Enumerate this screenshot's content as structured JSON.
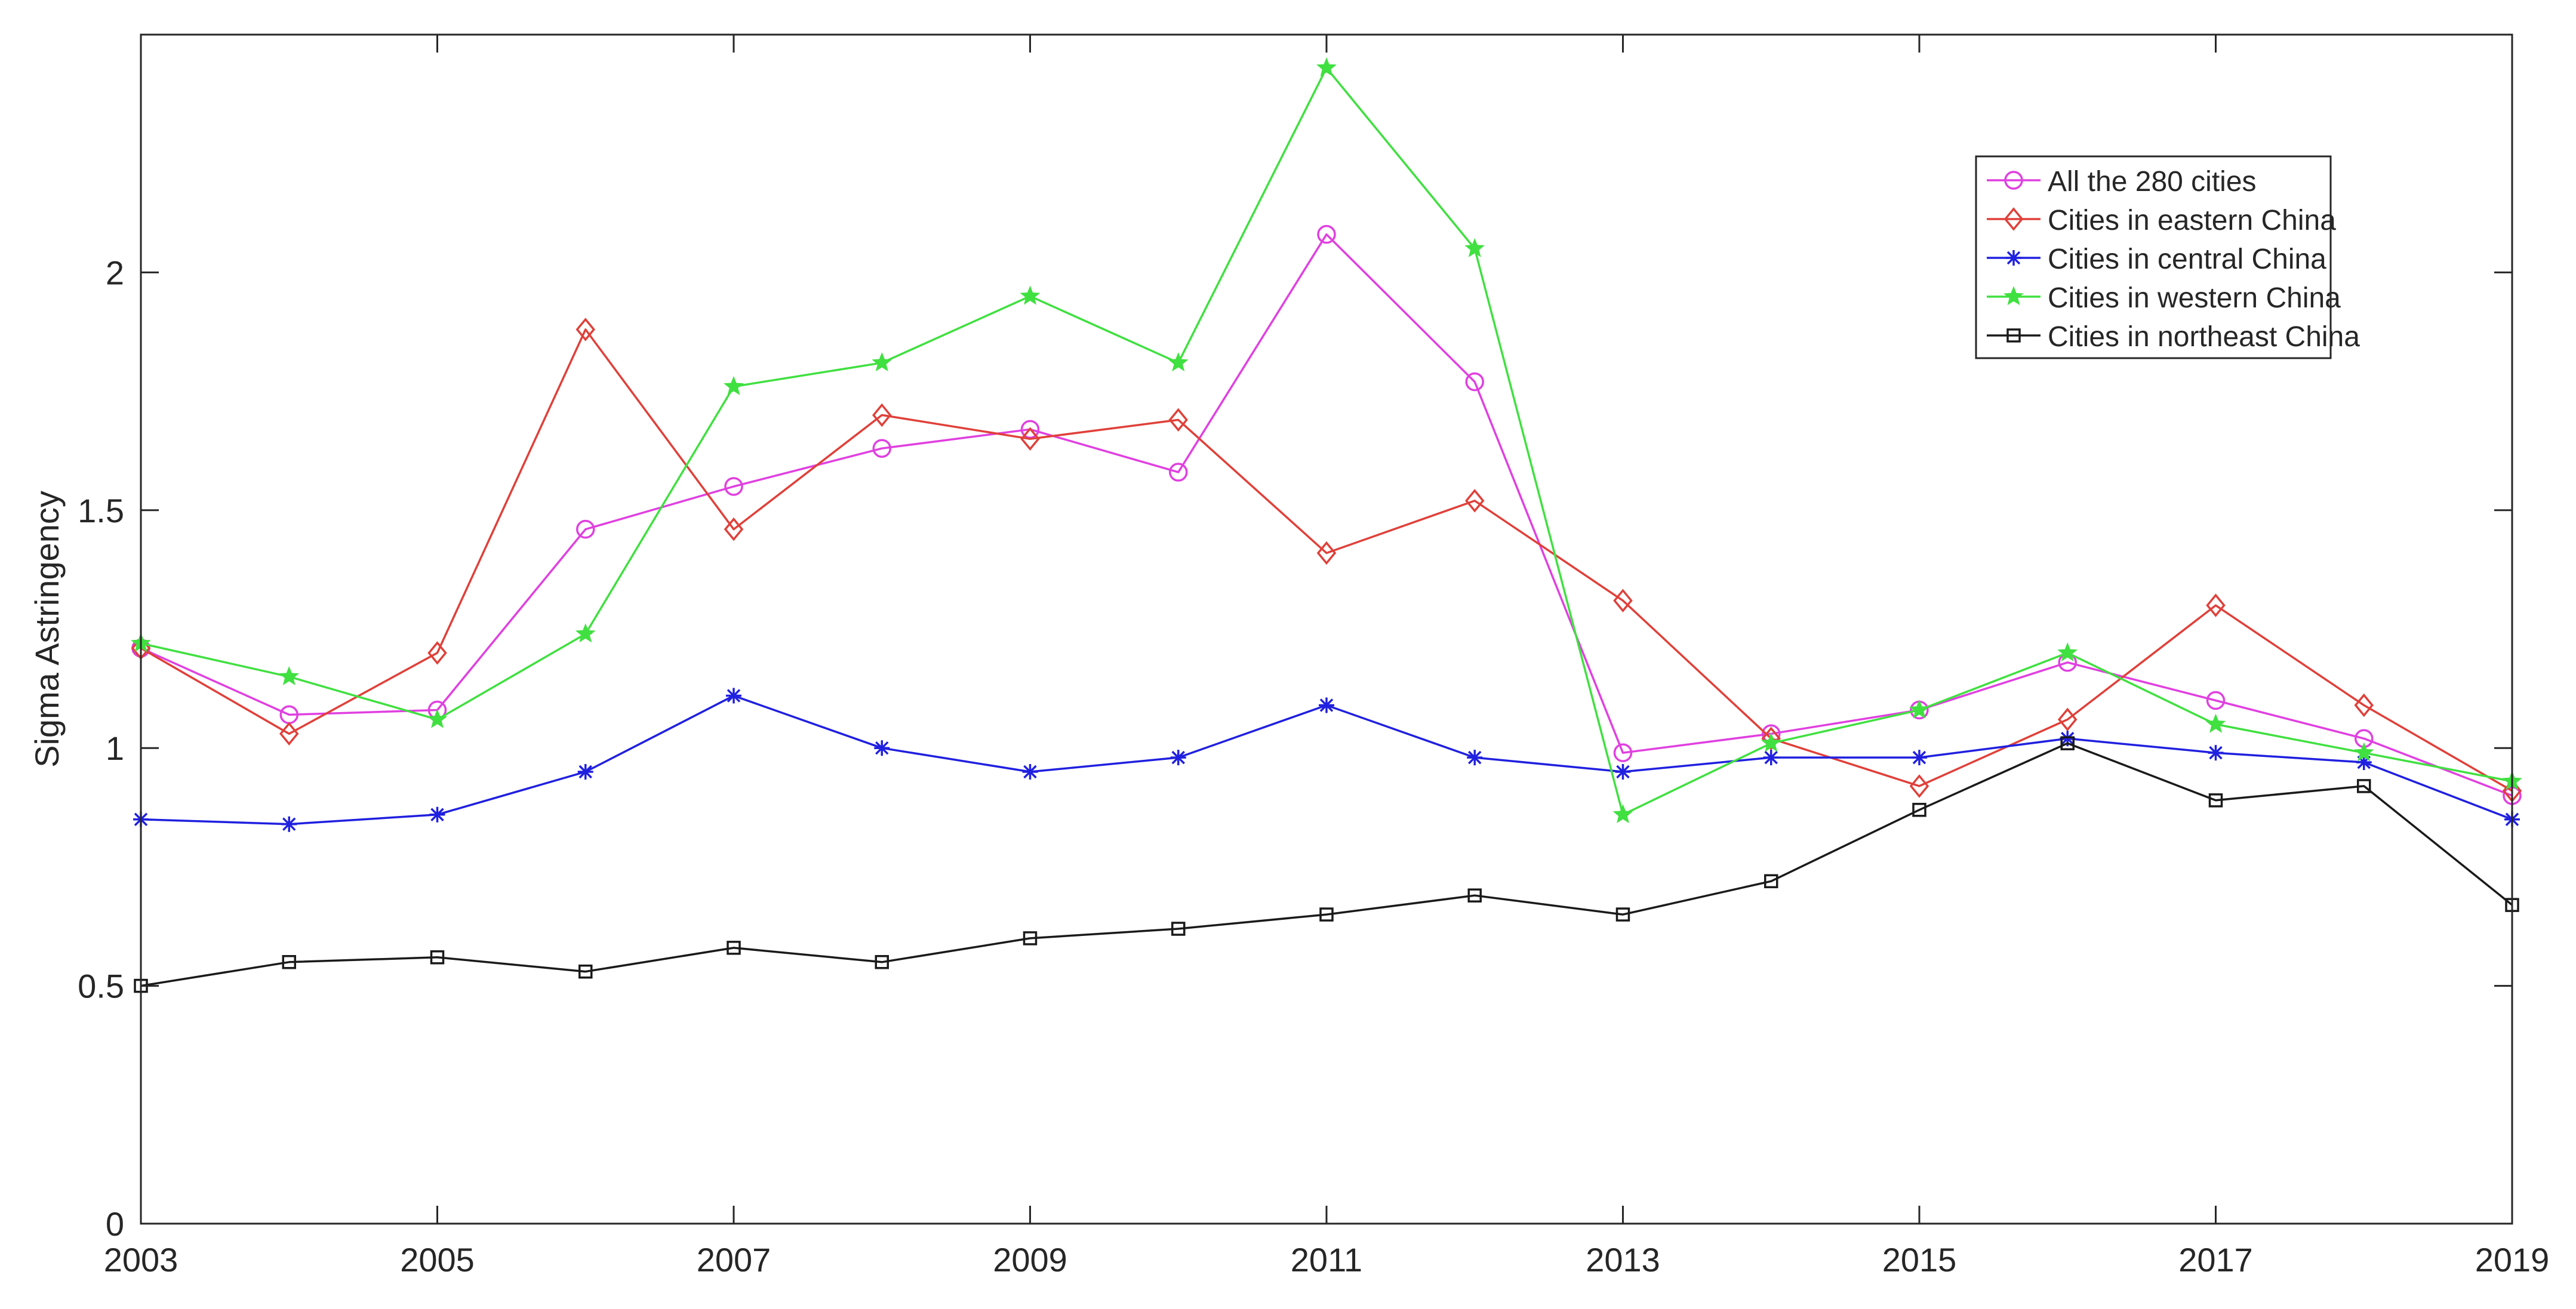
{
  "chart_data": {
    "type": "line",
    "title": "",
    "xlabel": "",
    "ylabel": "Sigma Astringency",
    "xlim": [
      2003,
      2019
    ],
    "ylim": [
      0,
      2.5
    ],
    "x_ticks": [
      2003,
      2005,
      2007,
      2009,
      2011,
      2013,
      2015,
      2017,
      2019
    ],
    "y_ticks": [
      0,
      0.5,
      1,
      1.5,
      2
    ],
    "y_tick_labels": [
      "0",
      "0.5",
      "1",
      "1.5",
      "2"
    ],
    "grid": false,
    "legend_position": "top-right",
    "x": [
      2003,
      2004,
      2005,
      2006,
      2007,
      2008,
      2009,
      2010,
      2011,
      2012,
      2013,
      2014,
      2015,
      2016,
      2017,
      2018,
      2019
    ],
    "series": [
      {
        "name": "All the 280 cities",
        "color": "#e040e0",
        "marker": "circle",
        "values": [
          1.21,
          1.07,
          1.08,
          1.46,
          1.55,
          1.63,
          1.67,
          1.58,
          2.08,
          1.77,
          0.99,
          1.03,
          1.08,
          1.18,
          1.1,
          1.02,
          0.9
        ]
      },
      {
        "name": "Cities in eastern China",
        "color": "#e0403a",
        "marker": "diamond",
        "values": [
          1.21,
          1.03,
          1.2,
          1.88,
          1.46,
          1.7,
          1.65,
          1.69,
          1.41,
          1.52,
          1.31,
          1.02,
          0.92,
          1.06,
          1.3,
          1.09,
          0.91
        ]
      },
      {
        "name": "Cities in central China",
        "color": "#2020e0",
        "marker": "asterisk",
        "values": [
          0.85,
          0.84,
          0.86,
          0.95,
          1.11,
          1.0,
          0.95,
          0.98,
          1.09,
          0.98,
          0.95,
          0.98,
          0.98,
          1.02,
          0.99,
          0.97,
          0.85
        ]
      },
      {
        "name": "Cities in western China",
        "color": "#40e040",
        "marker": "star",
        "values": [
          1.22,
          1.15,
          1.06,
          1.24,
          1.76,
          1.81,
          1.95,
          1.81,
          2.43,
          2.05,
          0.86,
          1.01,
          1.08,
          1.2,
          1.05,
          0.99,
          0.93
        ]
      },
      {
        "name": "Cities in northeast China",
        "color": "#1a1a1a",
        "marker": "square",
        "values": [
          0.5,
          0.55,
          0.56,
          0.53,
          0.58,
          0.55,
          0.6,
          0.62,
          0.65,
          0.69,
          0.65,
          0.72,
          0.87,
          1.01,
          0.89,
          0.92,
          0.67
        ]
      }
    ]
  }
}
